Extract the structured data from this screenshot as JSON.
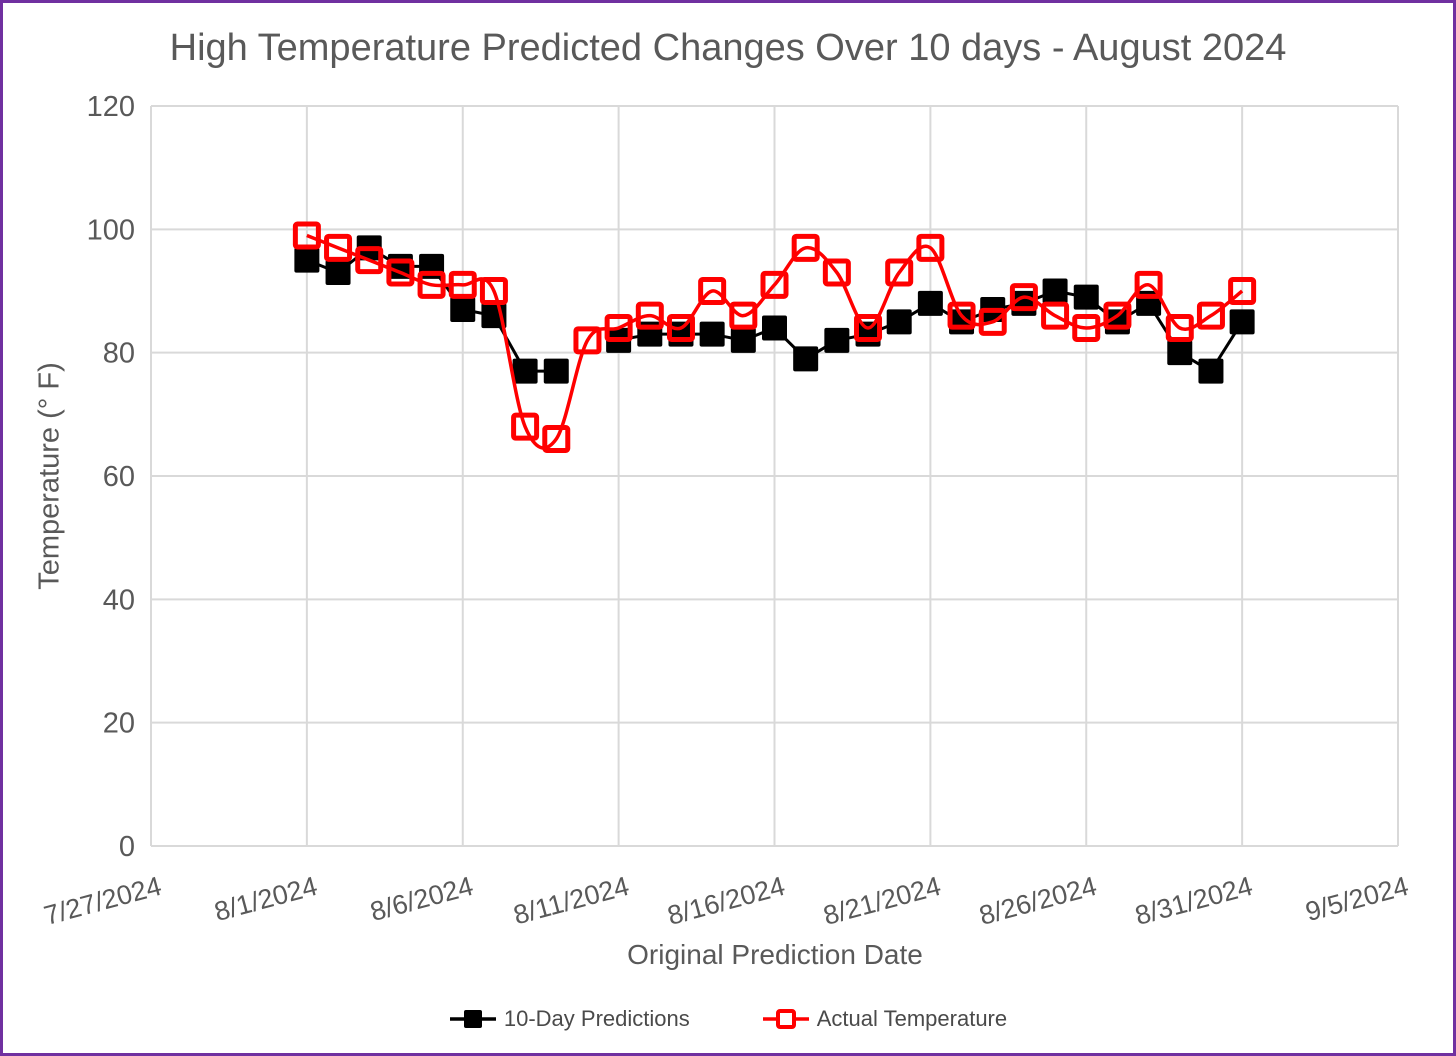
{
  "frame": {
    "border_color": "#7030A0",
    "background": "#FFFFFF"
  },
  "chart_data": {
    "type": "line",
    "title": "High Temperature Predicted Changes Over 10 days - August 2024",
    "xlabel": "Original Prediction Date",
    "ylabel": "Temperature (° F)",
    "ylim": [
      0,
      120
    ],
    "ytick_step": 20,
    "grid": true,
    "legend_position": "bottom",
    "text_color": "#595959",
    "gridline_color": "#D9D9D9",
    "x_tick_labels": [
      "7/27/2024",
      "8/1/2024",
      "8/6/2024",
      "8/11/2024",
      "8/16/2024",
      "8/21/2024",
      "8/26/2024",
      "8/31/2024",
      "9/5/2024"
    ],
    "dates": [
      "8/1/2024",
      "8/2/2024",
      "8/3/2024",
      "8/4/2024",
      "8/5/2024",
      "8/6/2024",
      "8/7/2024",
      "8/8/2024",
      "8/9/2024",
      "8/10/2024",
      "8/11/2024",
      "8/12/2024",
      "8/13/2024",
      "8/14/2024",
      "8/15/2024",
      "8/16/2024",
      "8/17/2024",
      "8/18/2024",
      "8/19/2024",
      "8/20/2024",
      "8/21/2024",
      "8/22/2024",
      "8/23/2024",
      "8/24/2024",
      "8/25/2024",
      "8/26/2024",
      "8/27/2024",
      "8/28/2024",
      "8/29/2024",
      "8/30/2024",
      "8/31/2024"
    ],
    "series": [
      {
        "name": "10-Day Predictions",
        "color": "#000000",
        "marker": "filled-square",
        "smooth": false,
        "values": [
          95,
          93,
          97,
          94,
          94,
          87,
          86,
          77,
          77,
          null,
          82,
          83,
          83,
          83,
          82,
          84,
          79,
          82,
          83,
          85,
          88,
          85,
          87,
          88,
          90,
          89,
          85,
          88,
          80,
          77,
          85
        ]
      },
      {
        "name": "Actual Temperature",
        "color": "#FF0000",
        "marker": "open-square",
        "smooth": true,
        "values": [
          99,
          97,
          95,
          93,
          91,
          91,
          90,
          68,
          66,
          82,
          84,
          86,
          84,
          90,
          86,
          91,
          97,
          93,
          84,
          93,
          97,
          86,
          85,
          89,
          86,
          84,
          86,
          91,
          84,
          86,
          90
        ]
      }
    ]
  }
}
